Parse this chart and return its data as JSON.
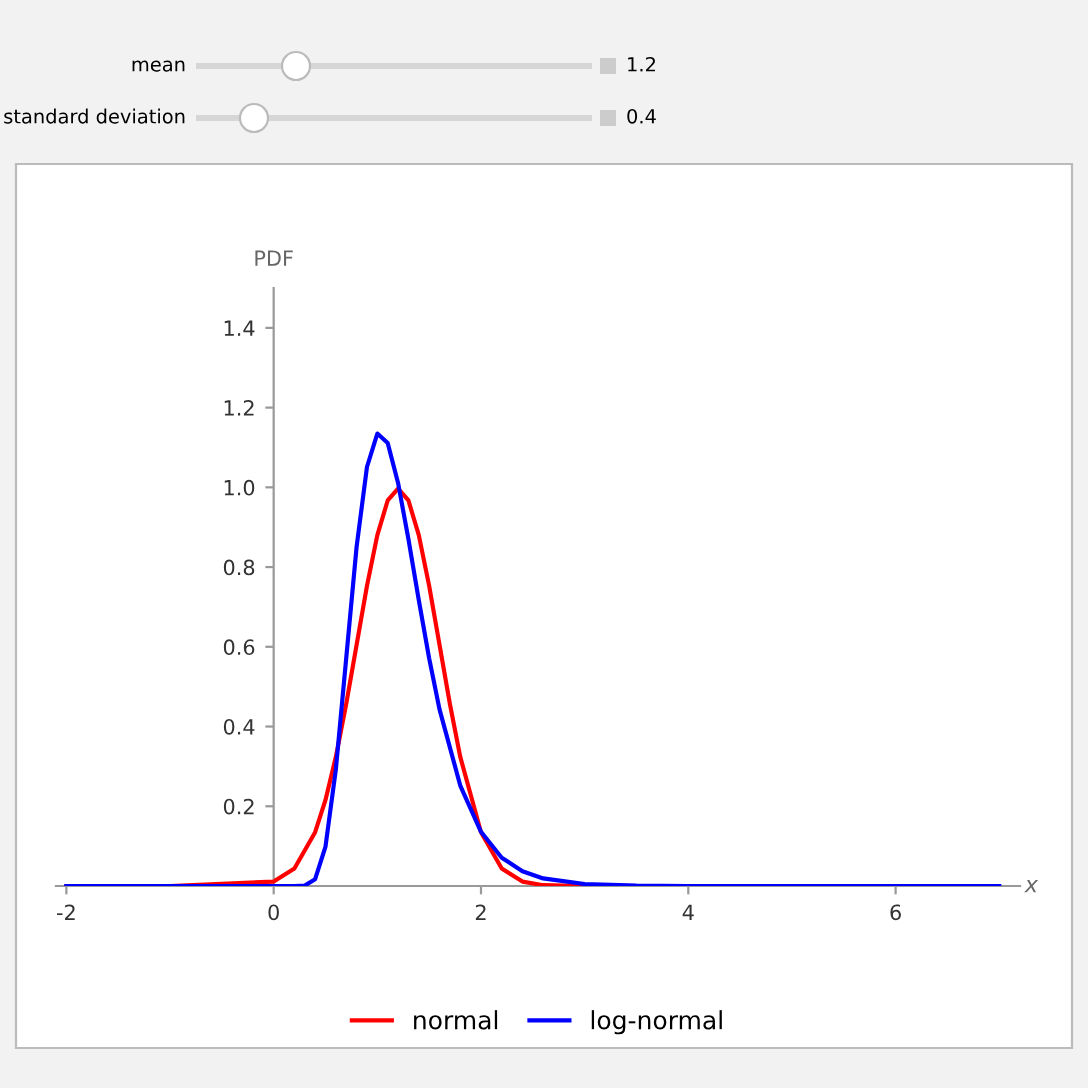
{
  "chart_data": {
    "type": "line",
    "xlabel": "x",
    "ylabel": "PDF",
    "annotations": [
      "mean",
      "1.2",
      "standard deviation",
      "0.4"
    ],
    "xlim": [
      -2.1,
      7.2
    ],
    "xticks": [
      -2,
      0,
      2,
      4,
      6
    ],
    "ylim": [
      0,
      1.5
    ],
    "yticks": [
      0.2,
      0.4,
      0.6,
      0.8,
      {
        "value": 1,
        "label": "1.0"
      },
      1.2,
      1.4
    ],
    "grid": false,
    "legend": "bottom",
    "marker": "none",
    "line_style": "solid",
    "series": [
      {
        "name": "normal",
        "color": "#ff0000",
        "x": [
          -2,
          -1,
          0,
          0.2,
          0.4,
          0.5,
          0.6,
          0.7,
          0.8,
          0.9,
          1.0,
          1.1,
          1.2,
          1.3,
          1.4,
          1.5,
          1.6,
          1.7,
          1.8,
          2.0,
          2.2,
          2.4,
          2.6,
          3,
          4
        ],
        "values": [
          0,
          0,
          0.011,
          0.044,
          0.135,
          0.216,
          0.324,
          0.457,
          0.605,
          0.753,
          0.88,
          0.967,
          0.997,
          0.967,
          0.88,
          0.753,
          0.605,
          0.457,
          0.324,
          0.135,
          0.044,
          0.011,
          0.002,
          0,
          0
        ]
      },
      {
        "name": "log-normal",
        "color": "#0000ff",
        "x": [
          -2,
          0,
          0.2,
          0.3,
          0.4,
          0.5,
          0.6,
          0.7,
          0.8,
          0.9,
          1.0,
          1.1,
          1.2,
          1.3,
          1.4,
          1.5,
          1.6,
          1.8,
          2.0,
          2.2,
          2.4,
          2.6,
          3.0,
          3.5,
          4,
          5,
          7
        ],
        "values": [
          0,
          0,
          0,
          0.001,
          0.017,
          0.099,
          0.293,
          0.572,
          0.851,
          1.051,
          1.135,
          1.111,
          1.011,
          0.87,
          0.717,
          0.571,
          0.443,
          0.252,
          0.136,
          0.071,
          0.037,
          0.019,
          0.005,
          0.001,
          0,
          0,
          0
        ]
      }
    ]
  }
}
